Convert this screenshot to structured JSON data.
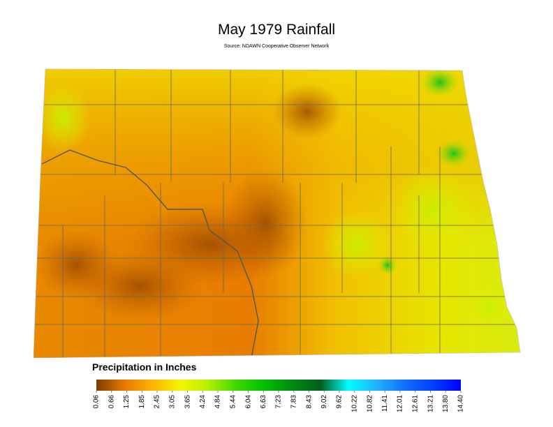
{
  "map": {
    "title": "May 1979 Rainfall",
    "source": "Source: NDAWN Cooperative Observer Network",
    "legend": {
      "title": "Precipitation in Inches",
      "colors": [
        "#7a3d00",
        "#e87800",
        "#ffb400",
        "#f4f400",
        "#b4f000",
        "#3cd800",
        "#00c000",
        "#008a10",
        "#006020",
        "#00ffff",
        "#20b0ff",
        "#1070ff",
        "#0040ff",
        "#0000ff"
      ],
      "ticks": [
        0.06,
        0.66,
        1.25,
        1.85,
        2.45,
        3.05,
        3.65,
        4.24,
        4.84,
        5.44,
        6.04,
        6.63,
        7.23,
        7.83,
        8.43,
        9.02,
        9.62,
        10.22,
        10.82,
        11.41,
        12.01,
        12.61,
        13.21,
        {
          "value": 13.8,
          "label": "13.80"
        },
        {
          "value": 14.4,
          "label": "14.40"
        }
      ]
    }
  }
}
